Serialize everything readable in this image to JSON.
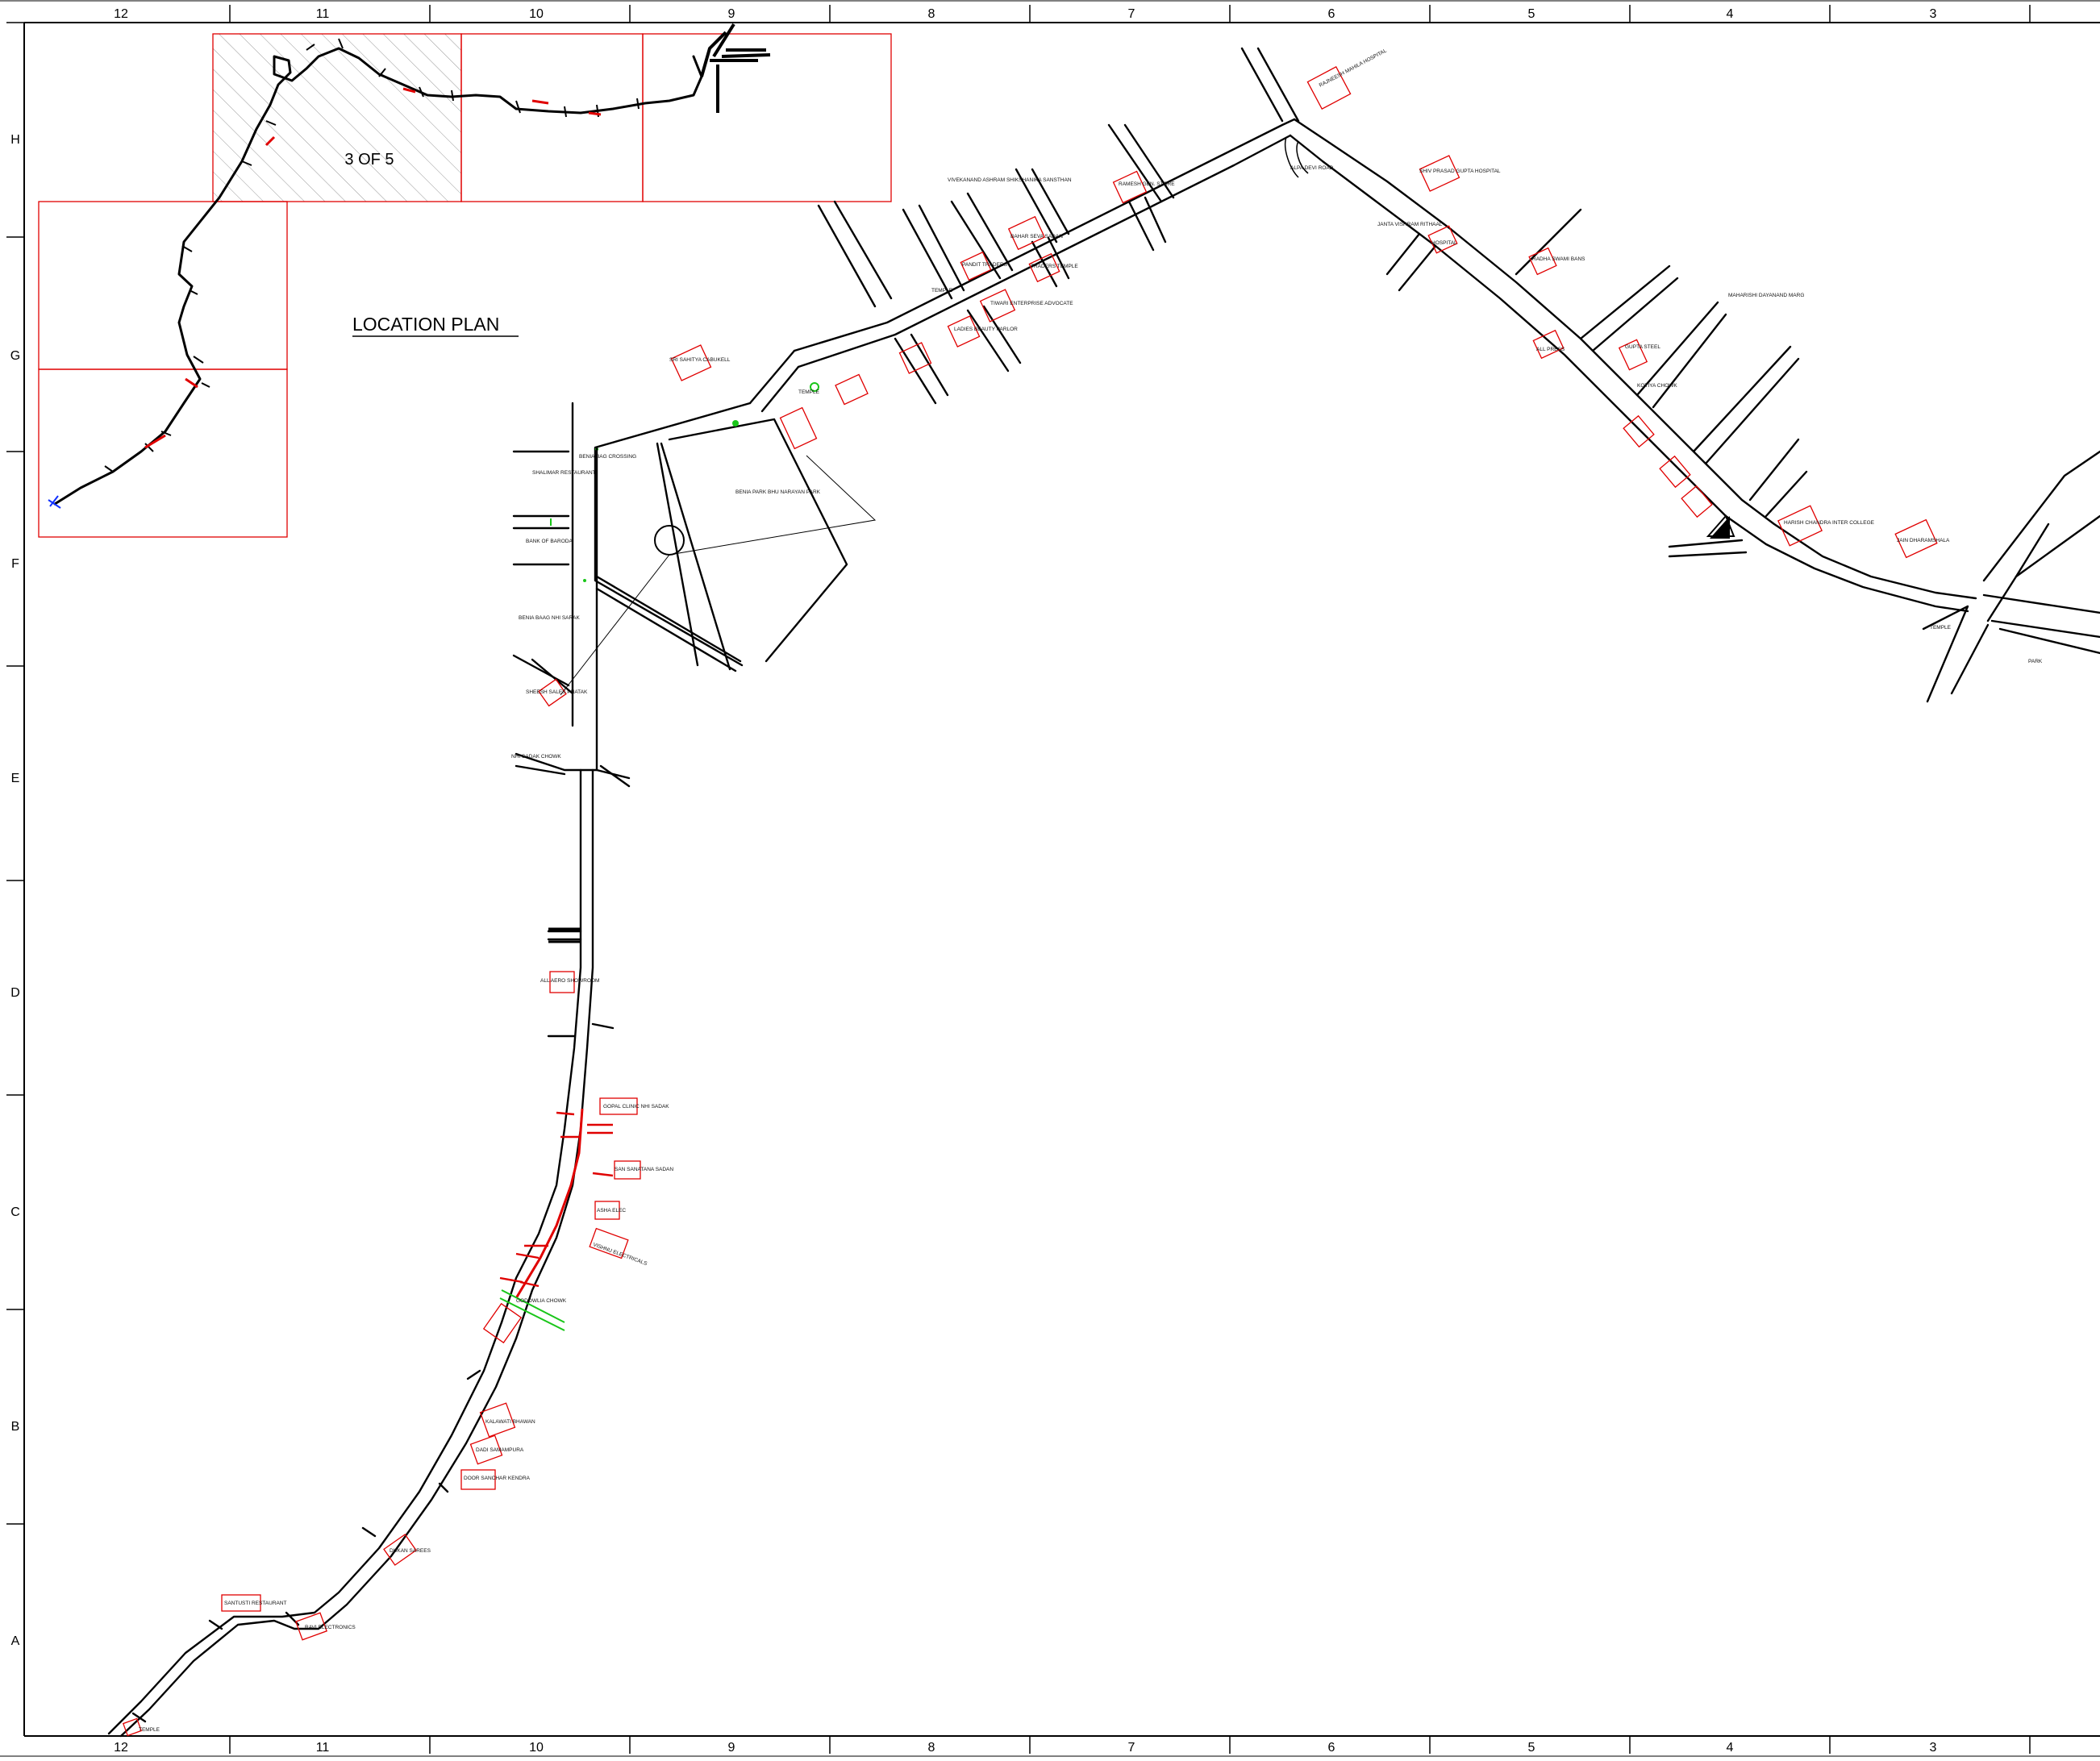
{
  "drawing": {
    "title": "LOCATION PLAN",
    "sheet_label": "3 OF 5"
  },
  "grid": {
    "columns": [
      "12",
      "11",
      "10",
      "9",
      "8",
      "7",
      "6",
      "5",
      "4",
      "3"
    ],
    "rows": [
      "H",
      "G",
      "F",
      "E",
      "D",
      "C",
      "B",
      "A"
    ]
  },
  "landmarks": {
    "rajneesh_hospital": "RAJNEESH MAHILA HOSPITAL",
    "shiv_prasad": "SHIV PRASAD GUPTA HOSPITAL",
    "vivekanand": "VIVEKANAND ASHRAM SHIKSHANIKA SANSTHAN",
    "ramesh": "RAMESH GEN. STORE",
    "bahar_seva": "BAHAR SEVA SADAN",
    "pandit_traders": "PANDIT TRADERS",
    "temple_1": "TEMPLE",
    "traders_temple": "TRADERS TEMPLE",
    "tiwari": "TIWARI ENTERPRISE ADVOCATE",
    "ladies_beauty": "LADIES BEAUTY PARLOR",
    "alfa_devi": "ALPA DEVI ROAD",
    "janta_vishram": "JANTA VISHRAM RITHAAL",
    "hospital": "HOSPITAL",
    "radha_swami": "RADHA SWAMI BANS",
    "maharishi": "MAHARISHI DAYANAND MARG",
    "all_press": "ALL PRESS",
    "gupta_steel": "GUPTA STEEL",
    "kotiya_chowk": "KOTIYA CHOWK",
    "harish_chandra": "HARISH CHANDRA INTER COLLEGE",
    "dharamshala": "JAIN DHARAMSHALA",
    "park": "PARK",
    "temple_2": "TEMPLE",
    "shri_sahitya": "SRI SAHITYA CABUKELL",
    "beniya_park": "BENIA PARK BHU NARAYAN PARK",
    "beniya_bag_crossing": "BENIA BAG CROSSING",
    "shalimar": "SHALIMAR RESTAURANT",
    "bank_baroda": "BANK OF BARODA",
    "beniya_baag": "BENIA BAAG NHI SARAK",
    "sheesh_sales": "SHEESH SALES PHATAK",
    "nhi_sadak": "NHI SADAK CHOWK",
    "auto_showroom": "ALL AERO SHOWROOM",
    "gopal_clinic": "GOPAL CLINIC NHI SADAK",
    "sanatana": "SAN SANATANA SADAN",
    "asha_elec": "ASHA ELEC",
    "vishnu_elec": "VISHNU ELECTRICALS",
    "goal_chowk": "GODOWLIA CHOWK",
    "kalawati": "KALAWATI BHAWAN",
    "dadi": "DADI SAMAMPURA",
    "door_sanchar": "DOOR SANCHAR KENDRA",
    "dukan": "DUKAN SAREES",
    "santushti": "SANTUSTI RESTAURANT",
    "ravi_elec": "RAVI ELECTRONICS",
    "temple_3": "TEMPLE",
    "temple_4": "TEMPLE"
  }
}
